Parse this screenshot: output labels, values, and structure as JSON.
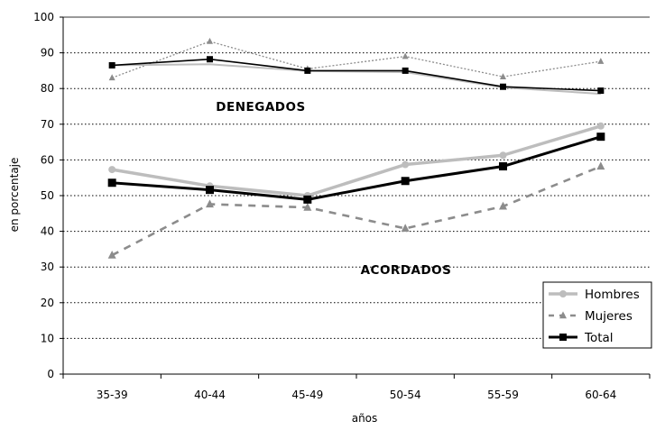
{
  "chart_data": {
    "type": "line",
    "categories": [
      "35-39",
      "40-44",
      "45-49",
      "50-54",
      "55-59",
      "60-64"
    ],
    "xlabel": "años",
    "ylabel": "en porcentaje",
    "ylim": [
      0,
      100
    ],
    "yticks": [
      0,
      10,
      20,
      30,
      40,
      50,
      60,
      70,
      80,
      90,
      100
    ],
    "grid": "horizontal-dotted",
    "annotations": [
      "DENEGADOS",
      "ACORDADOS"
    ],
    "legend_position": "bottom-right",
    "series": [
      {
        "name": "Hombres",
        "group": "ACORDADOS",
        "color": "#bdbdbd",
        "marker": "circle",
        "style": "solid",
        "values": [
          57.3,
          52.7,
          50.0,
          58.7,
          61.3,
          69.5
        ]
      },
      {
        "name": "Mujeres",
        "group": "ACORDADOS",
        "color": "#8c8c8c",
        "marker": "triangle",
        "style": "dashed",
        "values": [
          33.3,
          47.6,
          46.7,
          40.8,
          47.0,
          58.2
        ]
      },
      {
        "name": "Total",
        "group": "ACORDADOS",
        "color": "#000000",
        "marker": "square",
        "style": "solid",
        "values": [
          53.6,
          51.6,
          48.9,
          54.1,
          58.2,
          66.5
        ]
      },
      {
        "name": "Hombres",
        "group": "DENEGADOS",
        "color": "#bdbdbd",
        "marker": "none",
        "style": "solid",
        "values": [
          86.5,
          86.8,
          84.9,
          84.6,
          80.3,
          78.5
        ]
      },
      {
        "name": "Mujeres",
        "group": "DENEGADOS",
        "color": "#8c8c8c",
        "marker": "triangle",
        "style": "dotted",
        "values": [
          83.0,
          93.2,
          85.5,
          89.0,
          83.3,
          87.6
        ]
      },
      {
        "name": "Total",
        "group": "DENEGADOS",
        "color": "#000000",
        "marker": "square",
        "style": "solid",
        "values": [
          86.5,
          88.2,
          85.0,
          85.0,
          80.5,
          79.4
        ]
      }
    ],
    "legend": [
      {
        "label": "Hombres",
        "color": "#bdbdbd",
        "marker": "circle",
        "style": "solid"
      },
      {
        "label": "Mujeres",
        "color": "#8c8c8c",
        "marker": "triangle",
        "style": "dashed"
      },
      {
        "label": "Total",
        "color": "#000000",
        "marker": "square",
        "style": "solid"
      }
    ]
  }
}
